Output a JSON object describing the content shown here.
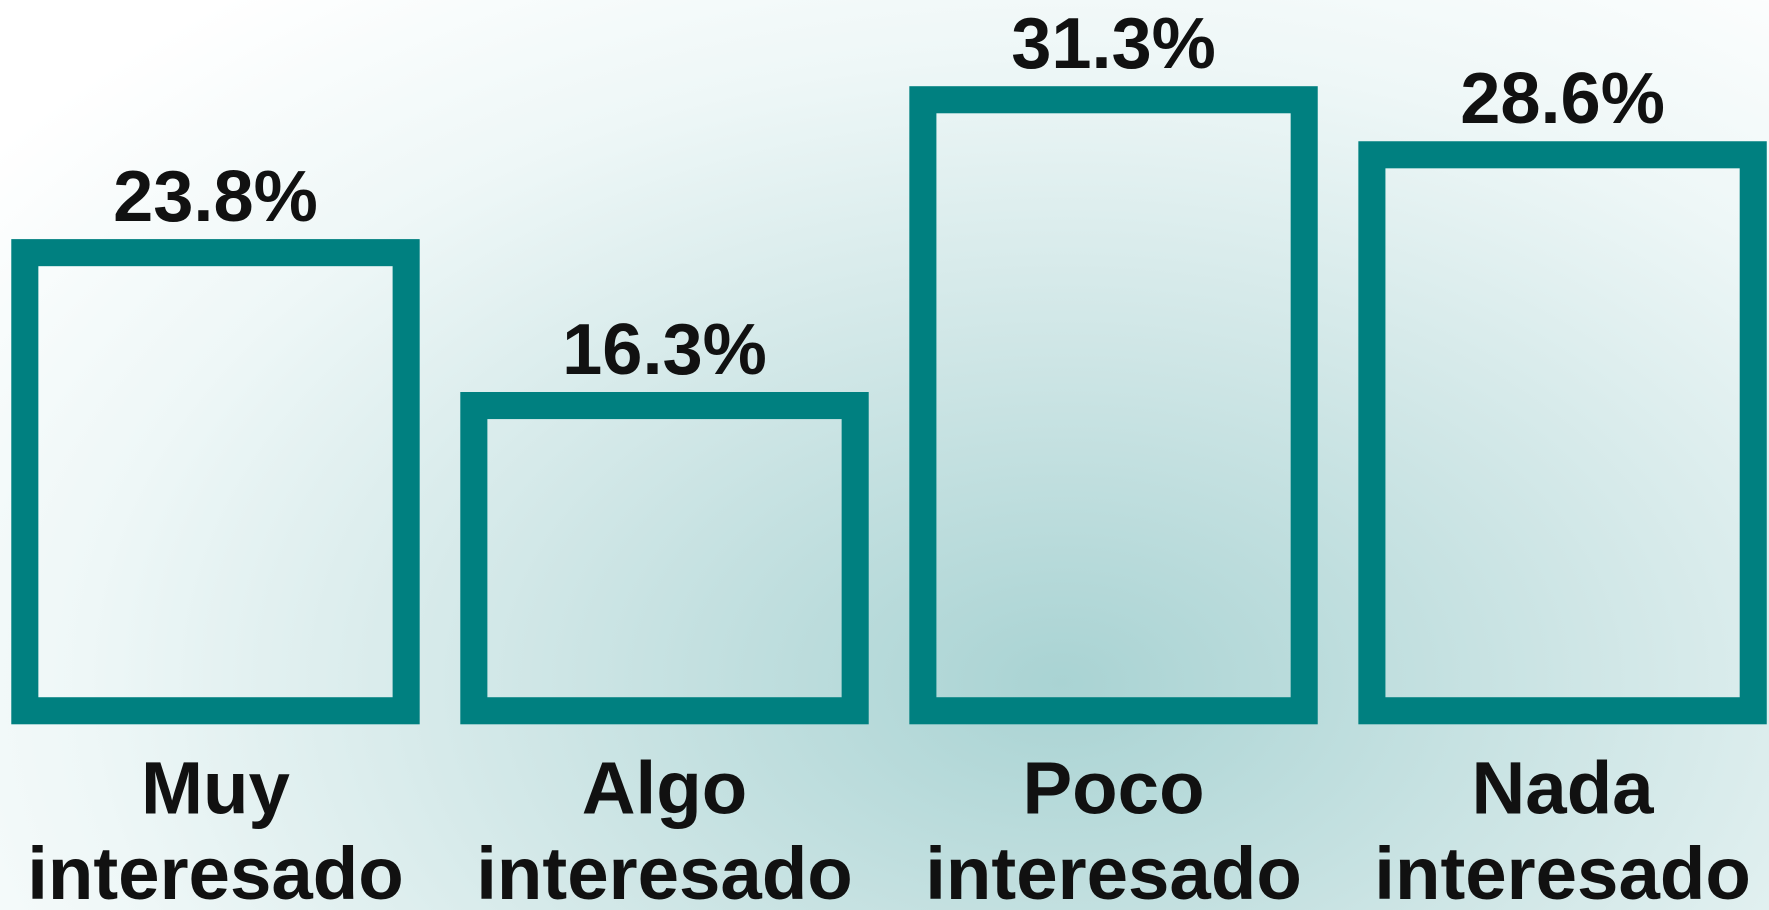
{
  "chart_data": {
    "type": "bar",
    "categories": [
      "Muy interesado",
      "Algo interesado",
      "Poco interesado",
      "Nada interesado"
    ],
    "values": [
      23.8,
      16.3,
      31.3,
      28.6
    ],
    "value_labels": [
      "23.8%",
      "16.3%",
      "31.3%",
      "28.6%"
    ],
    "color": "#008080"
  }
}
